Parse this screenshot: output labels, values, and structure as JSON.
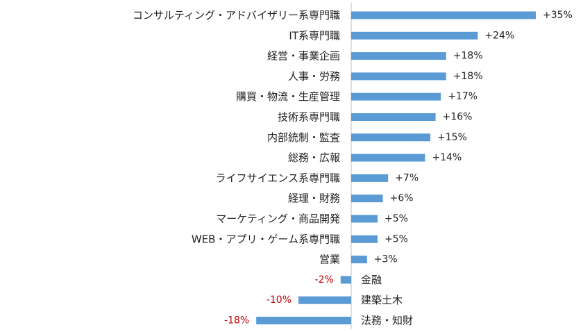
{
  "chart_data": {
    "type": "bar",
    "orientation": "horizontal",
    "title": "",
    "xlabel": "",
    "ylabel": "",
    "grid": false,
    "legend": "none",
    "xlim": [
      -20,
      36
    ],
    "categories": [
      "コンサルティング・アドバイザリー系専門職",
      "IT系専門職",
      "経営・事業企画",
      "人事・労務",
      "購買・物流・生産管理",
      "技術系専門職",
      "内部統制・監査",
      "総務・広報",
      "ライフサイエンス系専門職",
      "経理・財務",
      "マーケティング・商品開発",
      "WEB・アプリ・ゲーム系専門職",
      "営業",
      "金融",
      "建築土木",
      "法務・知財"
    ],
    "values": [
      35,
      24,
      18,
      18,
      17,
      16,
      15,
      14,
      7,
      6,
      5,
      5,
      3,
      -2,
      -10,
      -18
    ],
    "value_labels": [
      "+35%",
      "+24%",
      "+18%",
      "+18%",
      "+17%",
      "+16%",
      "+15%",
      "+14%",
      "+7%",
      "+6%",
      "+5%",
      "+5%",
      "+3%",
      "-2%",
      "-10%",
      "-18%"
    ],
    "colors": {
      "bar": "#5B9BD5",
      "positive_label": "#222222",
      "negative_label": "#C00000",
      "axis": "#BFBFBF"
    }
  }
}
